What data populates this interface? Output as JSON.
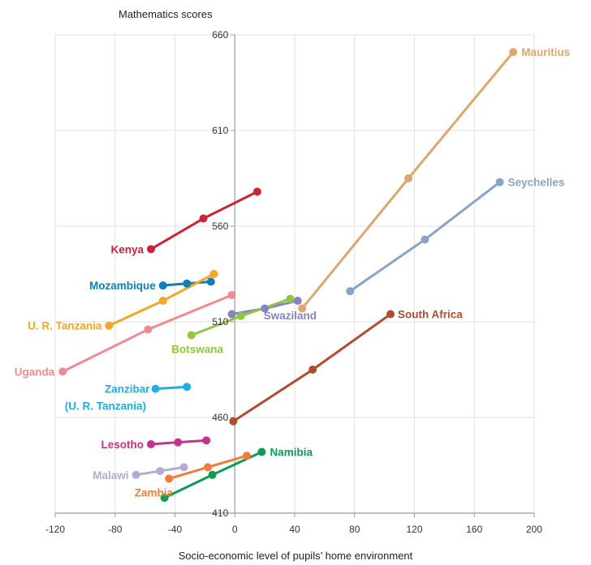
{
  "chart_data": {
    "type": "line",
    "title": "",
    "ylabel": "Mathematics scores",
    "xlabel": "Socio-economic level of pupils’ home environment",
    "xlim": [
      -120,
      200
    ],
    "ylim": [
      410,
      660
    ],
    "x_ticks": [
      -120,
      -80,
      -40,
      0,
      40,
      80,
      120,
      160,
      200
    ],
    "x_tick_labels": [
      "-120",
      "-80",
      "-40",
      "0",
      "40",
      "80",
      "120",
      "160",
      "200"
    ],
    "y_ticks": [
      410,
      460,
      510,
      560,
      610,
      660
    ],
    "y_tick_labels": [
      "410",
      "460",
      "510",
      "560",
      "610",
      "660"
    ],
    "grid": true,
    "series": [
      {
        "name": "Mauritius",
        "color": "#dba86f",
        "points": [
          [
            45,
            517
          ],
          [
            116,
            585
          ],
          [
            186,
            651
          ]
        ]
      },
      {
        "name": "Seychelles",
        "color": "#8aa4c6",
        "points": [
          [
            77,
            526
          ],
          [
            127,
            553
          ],
          [
            177,
            583
          ]
        ]
      },
      {
        "name": "Kenya",
        "color": "#cc2337",
        "points": [
          [
            -56,
            548
          ],
          [
            -21,
            564
          ],
          [
            15,
            578
          ]
        ]
      },
      {
        "name": "Mozambique",
        "color": "#127eb5",
        "points": [
          [
            -48,
            529
          ],
          [
            -32,
            530
          ],
          [
            -16,
            531
          ]
        ]
      },
      {
        "name": "U. R. Tanzania",
        "color": "#f6a623",
        "points": [
          [
            -84,
            508
          ],
          [
            -48,
            521
          ],
          [
            -14,
            535
          ]
        ]
      },
      {
        "name": "Uganda",
        "color": "#f08b94",
        "points": [
          [
            -115,
            484
          ],
          [
            -58,
            506
          ],
          [
            -2,
            524
          ]
        ]
      },
      {
        "name": "Swaziland",
        "color": "#8783c0",
        "points": [
          [
            -2,
            514
          ],
          [
            20,
            517
          ],
          [
            42,
            521
          ]
        ]
      },
      {
        "name": "Botswana",
        "color": "#8fc742",
        "points": [
          [
            -29,
            503
          ],
          [
            4,
            513
          ],
          [
            37,
            522
          ]
        ]
      },
      {
        "name": "South Africa",
        "color": "#b04d2c",
        "points": [
          [
            -1,
            458
          ],
          [
            52,
            485
          ],
          [
            104,
            514
          ]
        ]
      },
      {
        "name": "Zanzibar (U. R. Tanzania)",
        "label_lines": [
          "Zanzibar",
          "(U. R. Tanzania)"
        ],
        "color": "#1eaee2",
        "points": [
          [
            -53,
            475
          ],
          [
            -32,
            476
          ]
        ]
      },
      {
        "name": "Lesotho",
        "color": "#c4338f",
        "points": [
          [
            -56,
            446
          ],
          [
            -38,
            447
          ],
          [
            -19,
            448
          ]
        ]
      },
      {
        "name": "Namibia",
        "color": "#0d9a54",
        "points": [
          [
            -47,
            418
          ],
          [
            -15,
            430
          ],
          [
            18,
            442
          ]
        ]
      },
      {
        "name": "Malawi",
        "color": "#b3abd4",
        "points": [
          [
            -66,
            430
          ],
          [
            -50,
            432
          ],
          [
            -34,
            434
          ]
        ]
      },
      {
        "name": "Zambia",
        "color": "#f07c3b",
        "points": [
          [
            -44,
            428
          ],
          [
            -18,
            434
          ],
          [
            8,
            440
          ]
        ]
      }
    ]
  }
}
